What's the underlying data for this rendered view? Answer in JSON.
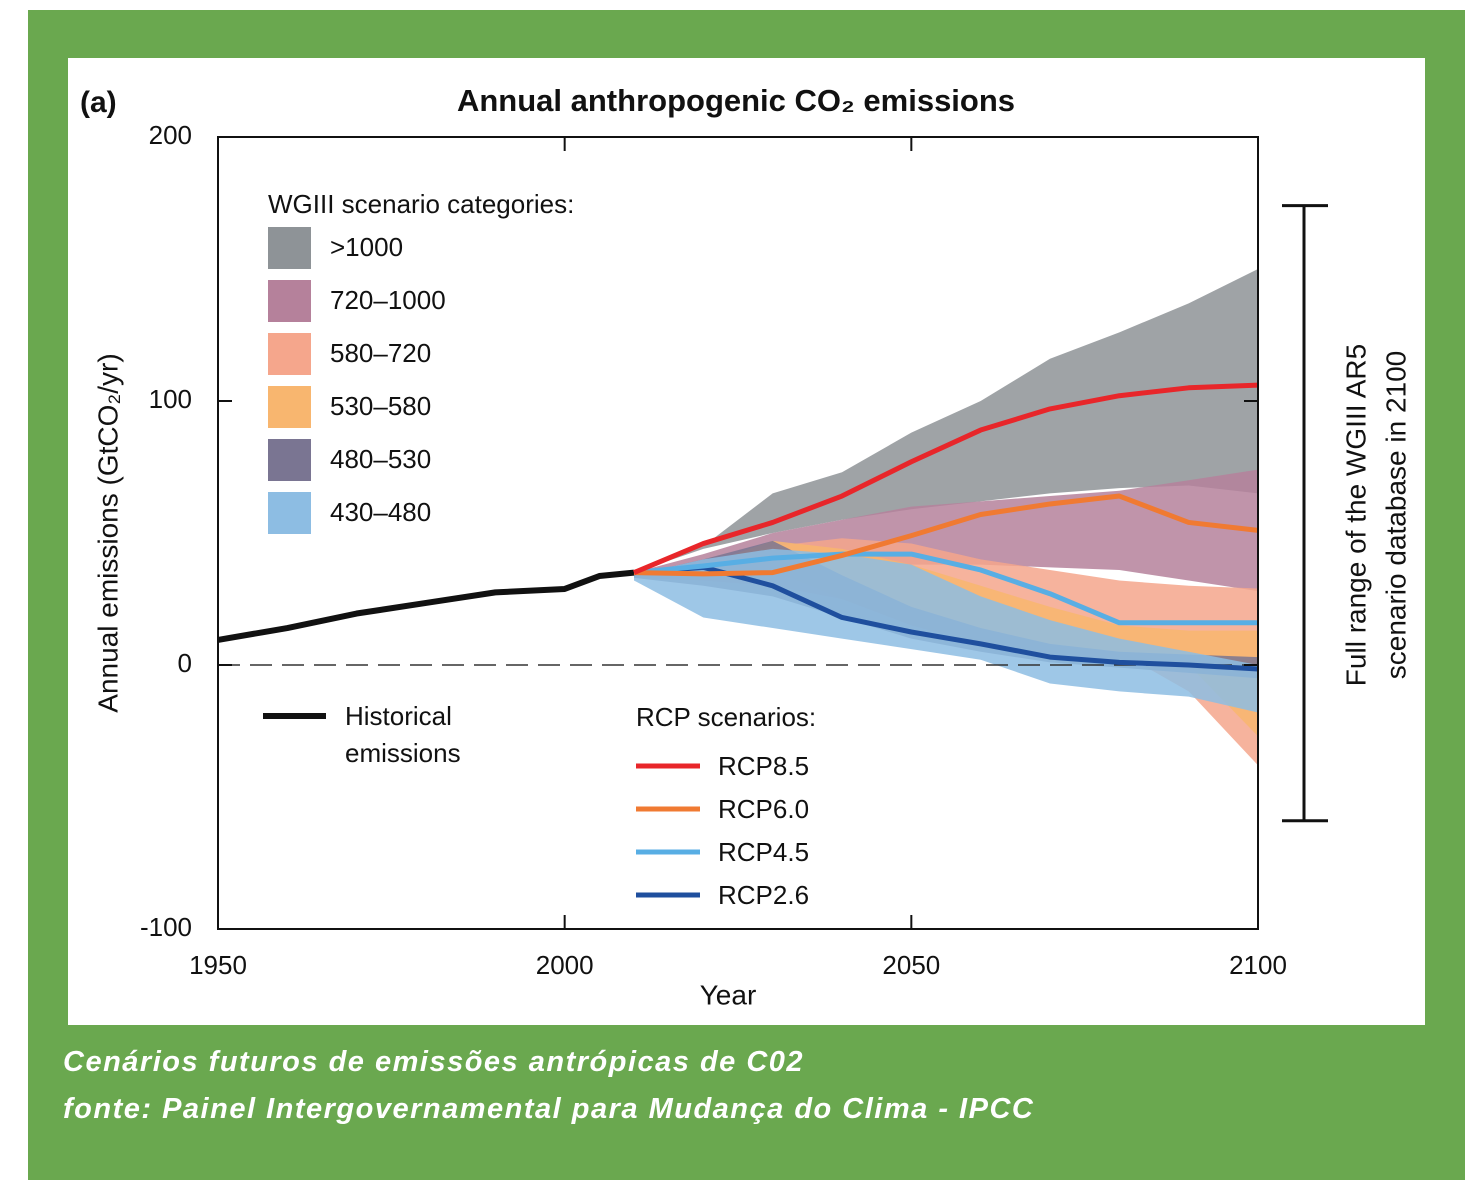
{
  "chart_data": {
    "type": "line",
    "panel_label": "(a)",
    "title": "Annual anthropogenic CO₂ emissions",
    "x_label": "Year",
    "y_label": "Annual emissions (GtCO₂/yr)",
    "xlim": [
      1950,
      2100
    ],
    "ylim": [
      -100,
      200
    ],
    "xticks": [
      1950,
      2000,
      2050,
      2100
    ],
    "yticks": [
      -100,
      0,
      100,
      200
    ],
    "hline": 0,
    "legend_title_bands": "WGIII scenario categories:",
    "legend_title_lines": "RCP scenarios:",
    "x": [
      2010,
      2020,
      2030,
      2040,
      2050,
      2060,
      2070,
      2080,
      2090,
      2100
    ],
    "bands": [
      {
        "name": ">1000",
        "color": "#8e9397",
        "upper": [
          35,
          45,
          65,
          73,
          88,
          100,
          116,
          126,
          137,
          150
        ],
        "lower": [
          35,
          44,
          50,
          55,
          59,
          62,
          65,
          67,
          68,
          65
        ]
      },
      {
        "name": "720–1000",
        "color": "#b5819b",
        "upper": [
          35,
          42,
          50,
          55,
          60,
          62,
          64,
          66,
          70,
          74
        ],
        "lower": [
          35,
          36,
          40,
          40,
          38,
          38,
          37,
          36,
          32,
          28
        ]
      },
      {
        "name": "580–720",
        "color": "#f5a68c",
        "upper": [
          34,
          38,
          45,
          48,
          46,
          40,
          36,
          32,
          30,
          29
        ],
        "lower": [
          33,
          32,
          30,
          25,
          18,
          12,
          8,
          5,
          -10,
          -38
        ]
      },
      {
        "name": "530–580",
        "color": "#f8b66f",
        "upper": [
          34,
          38,
          47,
          44,
          38,
          30,
          22,
          15,
          13,
          13
        ],
        "lower": [
          33,
          34,
          36,
          25,
          15,
          8,
          4,
          2,
          0,
          -27
        ]
      },
      {
        "name": "480–530",
        "color": "#7a7592",
        "upper": [
          34,
          40,
          47,
          34,
          22,
          14,
          8,
          5,
          4,
          3
        ],
        "lower": [
          33,
          30,
          26,
          18,
          10,
          5,
          1,
          -1,
          -3,
          -5
        ]
      },
      {
        "name": "430–480",
        "color": "#8dbde3",
        "upper": [
          34,
          40,
          44,
          42,
          38,
          26,
          17,
          10,
          5,
          0
        ],
        "lower": [
          32,
          18,
          14,
          10,
          6,
          2,
          -7,
          -10,
          -12,
          -18
        ]
      }
    ],
    "historical": {
      "name": "Historical emissions",
      "color": "#111111",
      "x": [
        1950,
        1960,
        1970,
        1980,
        1990,
        2000,
        2005,
        2010
      ],
      "values": [
        9.5,
        14,
        19.5,
        23.5,
        27.5,
        28.8,
        33.7,
        35
      ]
    },
    "series": [
      {
        "name": "RCP8.5",
        "color": "#e8262a",
        "values": [
          35,
          46,
          54,
          64,
          77,
          89,
          97,
          102,
          105,
          106
        ]
      },
      {
        "name": "RCP6.0",
        "color": "#f07a32",
        "values": [
          35,
          34.5,
          35,
          41.5,
          49,
          57,
          61,
          64,
          54,
          51
        ]
      },
      {
        "name": "RCP4.5",
        "color": "#58aee4",
        "values": [
          35,
          37.5,
          40.5,
          42,
          42,
          36,
          27,
          16,
          16,
          16
        ]
      },
      {
        "name": "RCP2.6",
        "color": "#1f4f9e",
        "values": [
          35,
          37,
          30,
          18,
          12.5,
          8,
          3,
          1,
          0,
          -1.5
        ]
      }
    ],
    "range_bar": {
      "values": [
        -59,
        174
      ],
      "label_lines": [
        "Full range of the WGIII AR5",
        "scenario database in 2100"
      ]
    }
  },
  "caption": [
    "Cenários futuros de emissões antrópicas de C02",
    "fonte: Painel Intergovernamental para Mudança do Clima - IPCC"
  ]
}
